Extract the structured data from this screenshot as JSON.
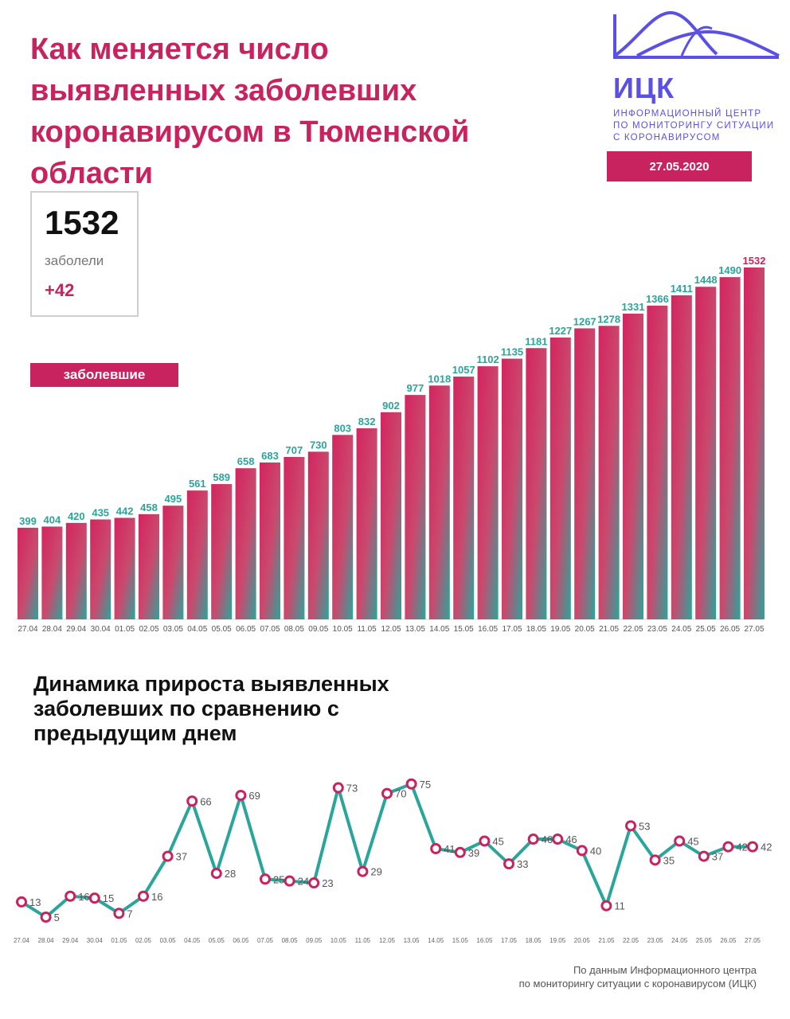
{
  "header": {
    "title": "Как меняется число\nвыявленных заболевших\nкоронавирусом в Тюменской\nобласти",
    "date": "27.05.2020"
  },
  "logo": {
    "name": "ИЦК",
    "caption": "ИНФОРМАЦИОННЫЙ ЦЕНТР\nПО МОНИТОРИНГУ СИТУАЦИИ\nС КОРОНАВИРУСОМ",
    "color": "#5b50e6"
  },
  "summary": {
    "total": "1532",
    "label": "заболели",
    "delta": "+42"
  },
  "colors": {
    "accent": "#c8235e",
    "teal": "#2aa59c"
  },
  "chart_data": [
    {
      "type": "bar",
      "legend": "заболевшие",
      "categories": [
        "27.04",
        "28.04",
        "29.04",
        "30.04",
        "01.05",
        "02.05",
        "03.05",
        "04.05",
        "05.05",
        "06.05",
        "07.05",
        "08.05",
        "09.05",
        "10.05",
        "11.05",
        "12.05",
        "13.05",
        "14.05",
        "15.05",
        "16.05",
        "17.05",
        "18.05",
        "19.05",
        "20.05",
        "21.05",
        "22.05",
        "23.05",
        "24.05",
        "25.05",
        "26.05",
        "27.05"
      ],
      "values": [
        399,
        404,
        420,
        435,
        442,
        458,
        495,
        561,
        589,
        658,
        683,
        707,
        730,
        803,
        832,
        902,
        977,
        1018,
        1057,
        1102,
        1135,
        1181,
        1227,
        1267,
        1278,
        1331,
        1366,
        1411,
        1448,
        1490,
        1532
      ],
      "ylim": [
        0,
        1600
      ]
    },
    {
      "type": "line",
      "title": "Динамика прироста выявленных\nзаболевших по сравнению с\nпредыдущим днем",
      "categories": [
        "27.04",
        "28.04",
        "29.04",
        "30.04",
        "01.05",
        "02.05",
        "03.05",
        "04.05",
        "05.05",
        "06.05",
        "07.05",
        "08.05",
        "09.05",
        "10.05",
        "11.05",
        "12.05",
        "13.05",
        "14.05",
        "15.05",
        "16.05",
        "17.05",
        "18.05",
        "19.05",
        "20.05",
        "21.05",
        "22.05",
        "23.05",
        "24.05",
        "25.05",
        "26.05",
        "27.05"
      ],
      "values": [
        13,
        5,
        16,
        15,
        7,
        16,
        37,
        66,
        28,
        69,
        25,
        24,
        23,
        73,
        29,
        70,
        75,
        41,
        39,
        45,
        33,
        46,
        46,
        40,
        11,
        53,
        35,
        45,
        37,
        42,
        42
      ],
      "ylim": [
        0,
        80
      ]
    }
  ],
  "footer": {
    "source": "По данным Информационного центра\nпо мониторингу ситуации с коронавирусом (ИЦК)"
  }
}
